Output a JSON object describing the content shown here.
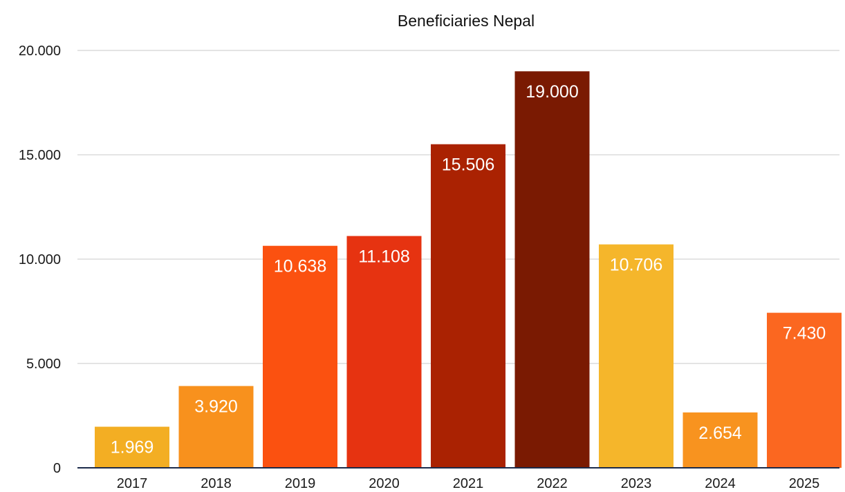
{
  "chart_data": {
    "type": "bar",
    "title": "Beneficiaries Nepal",
    "xlabel": "",
    "ylabel": "",
    "categories": [
      "2017",
      "2018",
      "2019",
      "2020",
      "2021",
      "2022",
      "2023",
      "2024",
      "2025"
    ],
    "values": [
      1969,
      3920,
      10638,
      11108,
      15506,
      19000,
      10706,
      2654,
      7430
    ],
    "value_labels": [
      "1.969",
      "3.920",
      "10.638",
      "11.108",
      "15.506",
      "19.000",
      "10.706",
      "2.654",
      "7.430"
    ],
    "ylim": [
      0,
      20000
    ],
    "yticks": [
      0,
      5000,
      10000,
      15000,
      20000
    ],
    "ytick_labels": [
      "0",
      "5.000",
      "10.000",
      "15.000",
      "20.000"
    ],
    "grid": true,
    "legend": "none",
    "bar_colors": [
      "#F3AE23",
      "#F8911D",
      "#FB5110",
      "#E63311",
      "#AA2202",
      "#7A1A02",
      "#F5B62B",
      "#F8931F",
      "#FB6720"
    ]
  }
}
